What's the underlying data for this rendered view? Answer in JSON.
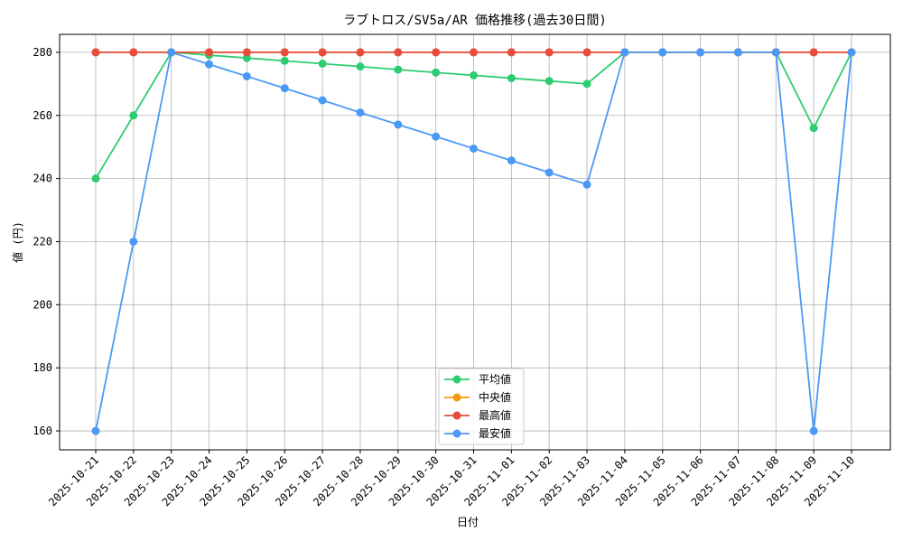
{
  "chart_data": {
    "type": "line",
    "title": "ラブトロス/SV5a/AR 価格推移(過去30日間)",
    "x_label": "日付",
    "y_label": "値 (円)",
    "categories": [
      "2025-10-21",
      "2025-10-22",
      "2025-10-23",
      "2025-10-24",
      "2025-10-25",
      "2025-10-26",
      "2025-10-27",
      "2025-10-28",
      "2025-10-29",
      "2025-10-30",
      "2025-10-31",
      "2025-11-01",
      "2025-11-02",
      "2025-11-03",
      "2025-11-04",
      "2025-11-05",
      "2025-11-06",
      "2025-11-07",
      "2025-11-08",
      "2025-11-09",
      "2025-11-10"
    ],
    "series": [
      {
        "name": "平均値",
        "color": "#2ecc71",
        "values": [
          240,
          260,
          280,
          279.1,
          278.2,
          277.3,
          276.4,
          275.5,
          274.5,
          273.6,
          272.7,
          271.8,
          270.9,
          270,
          280,
          280,
          280,
          280,
          280,
          256,
          280
        ]
      },
      {
        "name": "中央値",
        "color": "#f39c12",
        "values": [
          280,
          280,
          280,
          280,
          280,
          280,
          280,
          280,
          280,
          280,
          280,
          280,
          280,
          280,
          280,
          280,
          280,
          280,
          280,
          280,
          280
        ]
      },
      {
        "name": "最高値",
        "color": "#e74c3c",
        "values": [
          280,
          280,
          280,
          280,
          280,
          280,
          280,
          280,
          280,
          280,
          280,
          280,
          280,
          280,
          280,
          280,
          280,
          280,
          280,
          280,
          280
        ]
      },
      {
        "name": "最安値",
        "color": "#4a9af5",
        "values": [
          160,
          220,
          280,
          276.2,
          272.4,
          268.6,
          264.8,
          260.9,
          257.1,
          253.3,
          249.5,
          245.7,
          241.9,
          238.1,
          280,
          280,
          280,
          280,
          280,
          160,
          280
        ]
      }
    ],
    "ylim": [
      154,
      285.7
    ],
    "yticks": [
      160,
      180,
      200,
      220,
      240,
      260,
      280
    ],
    "grid": true,
    "legend": "lower center"
  }
}
